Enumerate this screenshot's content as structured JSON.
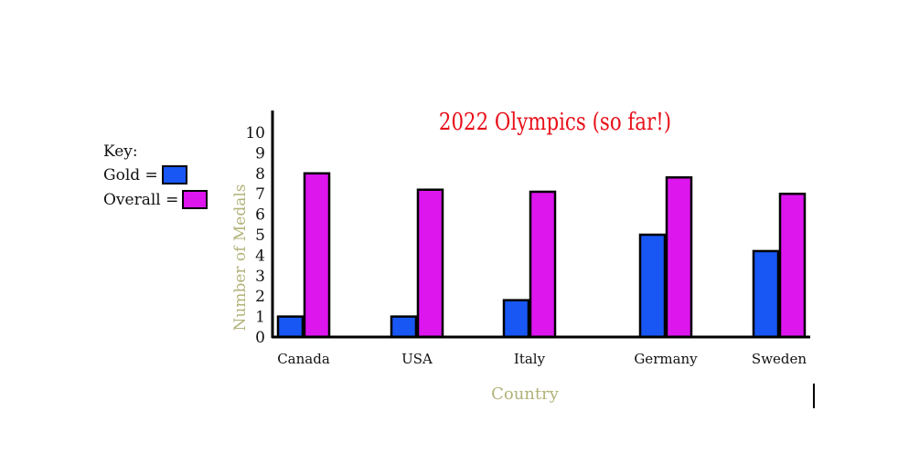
{
  "key": {
    "title": "Key:",
    "gold_label": "Gold =",
    "overall_label": "Overall ="
  },
  "colors": {
    "gold": "#1857f4",
    "overall": "#dd16ee",
    "title": "#e8101a",
    "axis_label": "#b2b27a"
  },
  "chart_data": {
    "type": "bar",
    "title": "2022 Olympics (so far!)",
    "xlabel": "Country",
    "ylabel": "Number of Medals",
    "categories": [
      "Canada",
      "USA",
      "Italy",
      "Germany",
      "Sweden"
    ],
    "series": [
      {
        "name": "Gold",
        "values": [
          1,
          1,
          1.8,
          5,
          4.2
        ]
      },
      {
        "name": "Overall",
        "values": [
          8,
          7.2,
          7.1,
          7.8,
          7
        ]
      }
    ],
    "yticks": [
      "0",
      "1",
      "2",
      "3",
      "4",
      "5",
      "6",
      "7",
      "8",
      "9",
      "10"
    ],
    "ylim": [
      0,
      11
    ],
    "grid": false,
    "legend": "left"
  }
}
